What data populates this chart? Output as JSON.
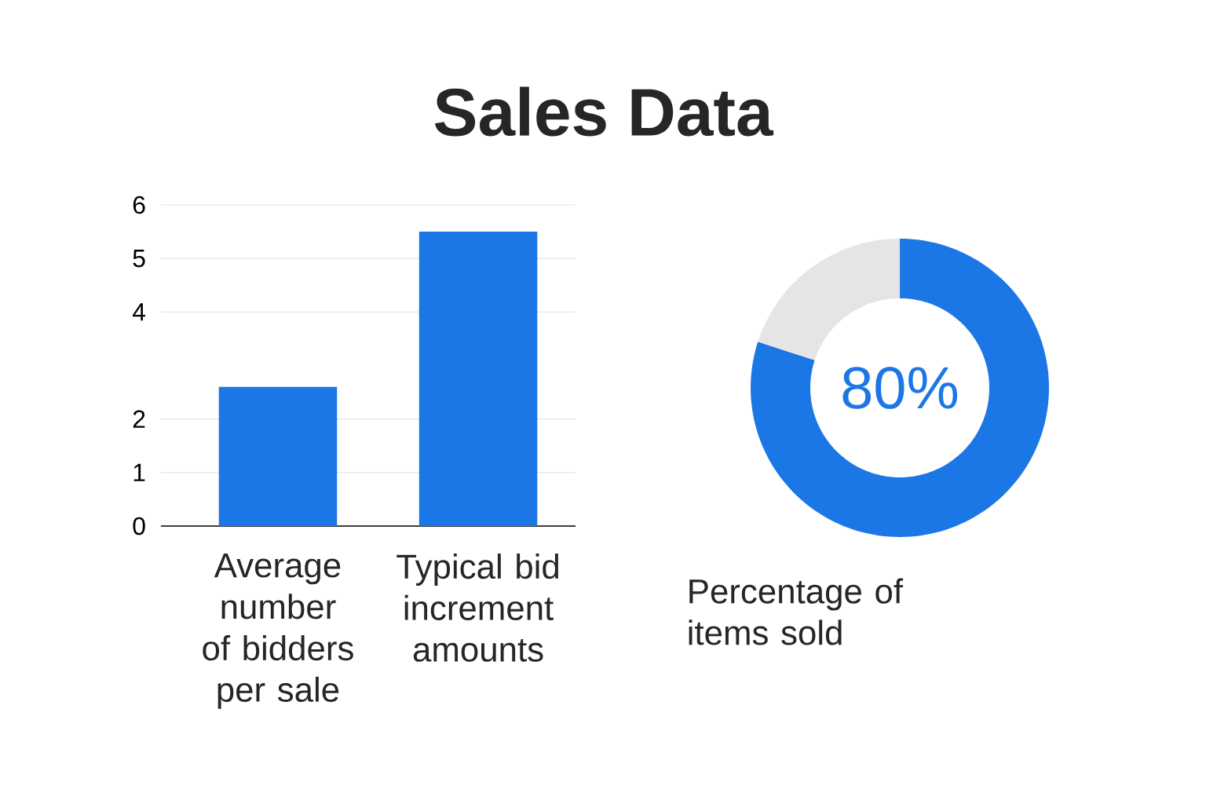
{
  "chart_data": [
    {
      "type": "bar",
      "title": "Sales Data",
      "categories": [
        "Average number of bidders per sale",
        "Typical bid increment amounts"
      ],
      "values": [
        2.6,
        5.5
      ],
      "color": "#1c77e6",
      "ylim": [
        0,
        6
      ],
      "yticks": [
        0,
        1,
        2,
        4,
        5,
        6
      ],
      "grid": "y"
    },
    {
      "type": "donut",
      "xlabel": "Percentage of items sold",
      "categories": [
        null,
        null
      ],
      "values": [
        80,
        20
      ],
      "colors": [
        "#1c77e6",
        "#e5e5e5"
      ],
      "value_labels": [
        "80%",
        null
      ]
    }
  ]
}
